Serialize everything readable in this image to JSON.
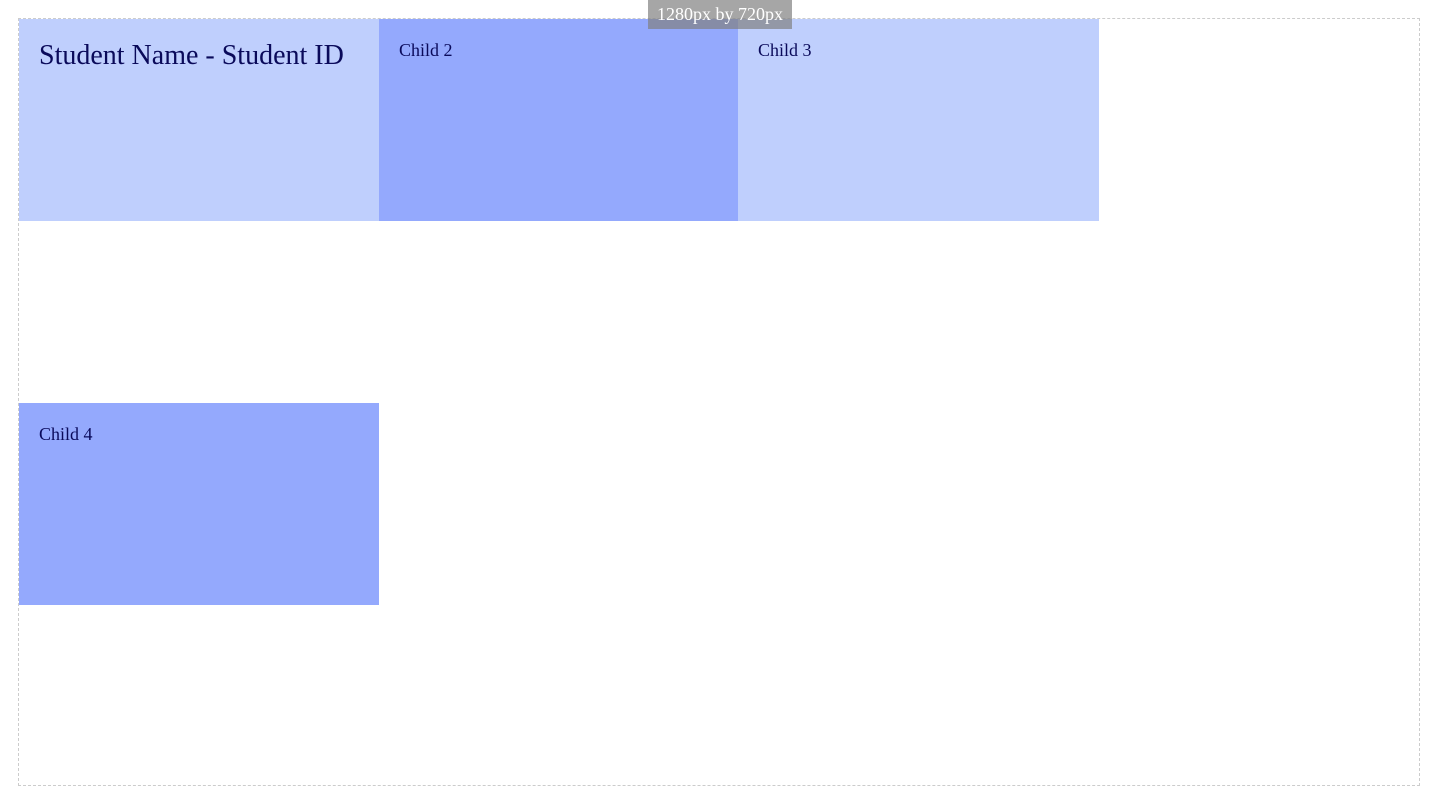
{
  "viewport": {
    "size_label": "1280px by 720px"
  },
  "children": {
    "child1_title": "Student Name - Student ID",
    "child2_label": "Child 2",
    "child3_label": "Child 3",
    "child4_label": "Child 4"
  },
  "colors": {
    "light_box": "#bfcffd",
    "dark_box": "#94a9fd",
    "text": "#0a0a5a",
    "label_bg": "#808080"
  }
}
